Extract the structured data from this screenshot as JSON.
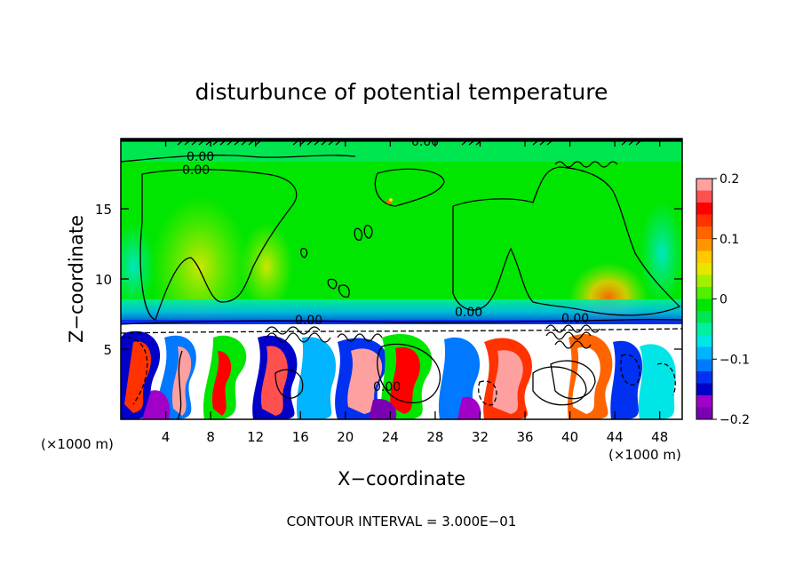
{
  "chart_data": {
    "type": "heatmap",
    "title": "disturbunce of potential temperature",
    "xlabel": "X−coordinate",
    "ylabel": "Z−coordinate",
    "x_unit": "(×1000 m)",
    "x_unit_right": "(×1000 m)",
    "footer": "CONTOUR INTERVAL = 3.000E−01",
    "xlim": [
      0,
      50
    ],
    "ylim": [
      0,
      20
    ],
    "x_ticks": [
      "4",
      "8",
      "12",
      "16",
      "20",
      "24",
      "28",
      "32",
      "36",
      "40",
      "44",
      "48"
    ],
    "x_tick_values": [
      4,
      8,
      12,
      16,
      20,
      24,
      28,
      32,
      36,
      40,
      44,
      48
    ],
    "y_ticks": [
      "5",
      "10",
      "15"
    ],
    "y_tick_values": [
      5,
      10,
      15
    ],
    "colorbar": {
      "range": [
        -0.2,
        0.2
      ],
      "tick_labels": [
        "0.2",
        "0.1",
        "0",
        "−0.1",
        "−0.2"
      ],
      "tick_values": [
        0.2,
        0.1,
        0,
        -0.1,
        -0.2
      ],
      "colors": [
        "#7a00b4",
        "#a000c8",
        "#0000c8",
        "#0030f0",
        "#0078ff",
        "#00b4ff",
        "#00e6e6",
        "#00f0a0",
        "#00e650",
        "#00e600",
        "#50f000",
        "#a0f000",
        "#e6e600",
        "#ffc800",
        "#ff9600",
        "#ff6400",
        "#ff3200",
        "#ff0000",
        "#ff5050",
        "#ffa0a0"
      ]
    },
    "contour_labels": [
      "0.00",
      "0.00",
      "0.00",
      "0.00",
      "0.00",
      "0.00",
      "0.00"
    ],
    "contour_interval": 0.3,
    "layers": [
      {
        "z_min": 7,
        "z_max": 19.8,
        "typical_value": 0.02
      },
      {
        "z_min": 0,
        "z_max": 7,
        "value_range": [
          -0.2,
          0.2
        ]
      }
    ]
  }
}
